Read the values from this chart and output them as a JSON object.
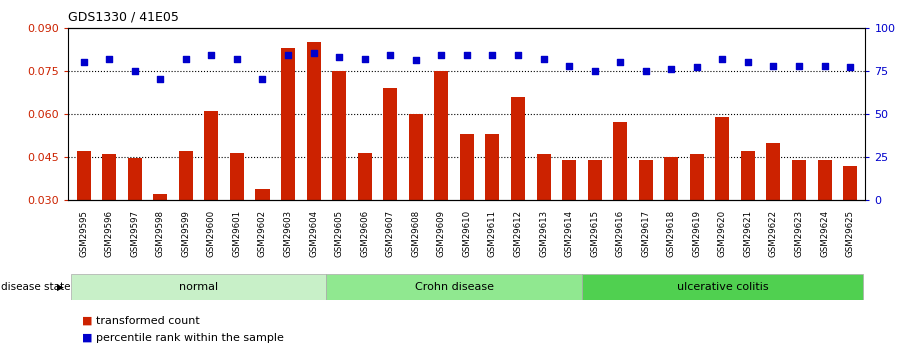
{
  "title": "GDS1330 / 41E05",
  "samples": [
    "GSM29595",
    "GSM29596",
    "GSM29597",
    "GSM29598",
    "GSM29599",
    "GSM29600",
    "GSM29601",
    "GSM29602",
    "GSM29603",
    "GSM29604",
    "GSM29605",
    "GSM29606",
    "GSM29607",
    "GSM29608",
    "GSM29609",
    "GSM29610",
    "GSM29611",
    "GSM29612",
    "GSM29613",
    "GSM29614",
    "GSM29615",
    "GSM29616",
    "GSM29617",
    "GSM29618",
    "GSM29619",
    "GSM29620",
    "GSM29621",
    "GSM29622",
    "GSM29623",
    "GSM29624",
    "GSM29625"
  ],
  "bar_values": [
    0.047,
    0.046,
    0.0445,
    0.032,
    0.047,
    0.061,
    0.0465,
    0.034,
    0.083,
    0.085,
    0.075,
    0.0465,
    0.069,
    0.06,
    0.075,
    0.053,
    0.053,
    0.066,
    0.046,
    0.044,
    0.044,
    0.057,
    0.044,
    0.045,
    0.046,
    0.059,
    0.047,
    0.05,
    0.044,
    0.044,
    0.042
  ],
  "dot_values": [
    80,
    82,
    75,
    70,
    82,
    84,
    82,
    70,
    84,
    85,
    83,
    82,
    84,
    81,
    84,
    84,
    84,
    84,
    82,
    78,
    75,
    80,
    75,
    76,
    77,
    82,
    80,
    78,
    78,
    78,
    77
  ],
  "groups": [
    {
      "label": "normal",
      "start": 0,
      "end": 9,
      "color": "#c8f0c8"
    },
    {
      "label": "Crohn disease",
      "start": 10,
      "end": 19,
      "color": "#90e890"
    },
    {
      "label": "ulcerative colitis",
      "start": 20,
      "end": 30,
      "color": "#50d050"
    }
  ],
  "bar_color": "#cc2200",
  "dot_color": "#0000cc",
  "ylim_left": [
    0.03,
    0.09
  ],
  "ylim_right": [
    0,
    100
  ],
  "yticks_left": [
    0.03,
    0.045,
    0.06,
    0.075,
    0.09
  ],
  "yticks_right": [
    0,
    25,
    50,
    75,
    100
  ],
  "grid_values": [
    0.045,
    0.06,
    0.075
  ],
  "background_color": "#ffffff",
  "disease_state_label": "disease state",
  "legend_bar_label": "transformed count",
  "legend_dot_label": "percentile rank within the sample"
}
